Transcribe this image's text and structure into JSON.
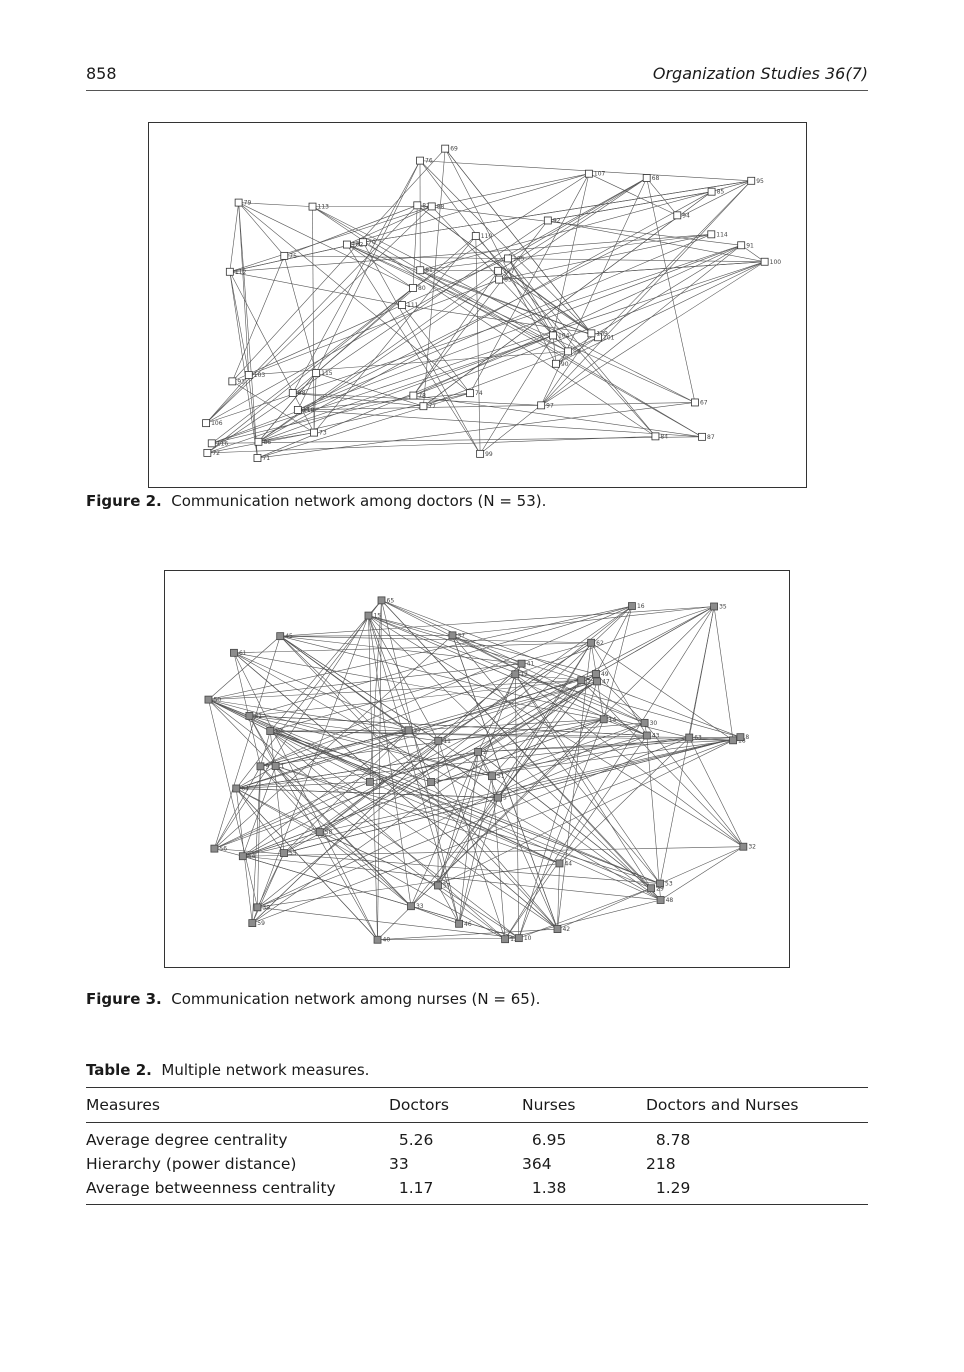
{
  "header": {
    "page_number": "858",
    "journal": "Organization Studies 36(7)"
  },
  "figure2": {
    "label": "Figure 2.",
    "caption": "Communication network among doctors (N = 53).",
    "node_color": "#ffffff",
    "nodes": [
      "87",
      "112",
      "85",
      "111",
      "92",
      "86",
      "82",
      "110",
      "103",
      "70",
      "106",
      "118",
      "88",
      "105",
      "101",
      "79",
      "76",
      "100",
      "104",
      "114",
      "80",
      "78",
      "81",
      "113",
      "107",
      "115",
      "84",
      "67",
      "109",
      "99",
      "102",
      "75",
      "90",
      "73",
      "91",
      "117",
      "116",
      "77",
      "83",
      "93",
      "94",
      "95",
      "96",
      "97",
      "98",
      "71",
      "72",
      "74",
      "68",
      "69"
    ]
  },
  "figure3": {
    "label": "Figure 3.",
    "caption": "Communication network among nurses (N = 65).",
    "node_color": "#8c8c8c",
    "nodes": [
      "65",
      "62",
      "18",
      "7",
      "5",
      "1",
      "61",
      "3",
      "64",
      "17",
      "2",
      "59",
      "15",
      "12",
      "13",
      "10",
      "57",
      "16",
      "14",
      "58",
      "60",
      "9",
      "8",
      "63",
      "56",
      "31",
      "11",
      "43",
      "53",
      "54",
      "29",
      "41",
      "55",
      "27",
      "44",
      "32",
      "30",
      "33",
      "35",
      "37",
      "39",
      "40",
      "42",
      "45",
      "46",
      "47",
      "48",
      "49",
      "50",
      "51"
    ]
  },
  "table": {
    "label": "Table 2.",
    "caption": "Multiple network measures.",
    "headers": [
      "Measures",
      "Doctors",
      "Nurses",
      "Doctors and Nurses"
    ],
    "rows": [
      {
        "measure": "Average degree centrality",
        "doctors": "  5.26",
        "nurses": "  6.95",
        "both": "  8.78"
      },
      {
        "measure": "Hierarchy (power distance)",
        "doctors": "33",
        "nurses": "364",
        "both": "218"
      },
      {
        "measure": "Average betweenness centrality",
        "doctors": "  1.17",
        "nurses": "  1.38",
        "both": "  1.29"
      }
    ]
  }
}
